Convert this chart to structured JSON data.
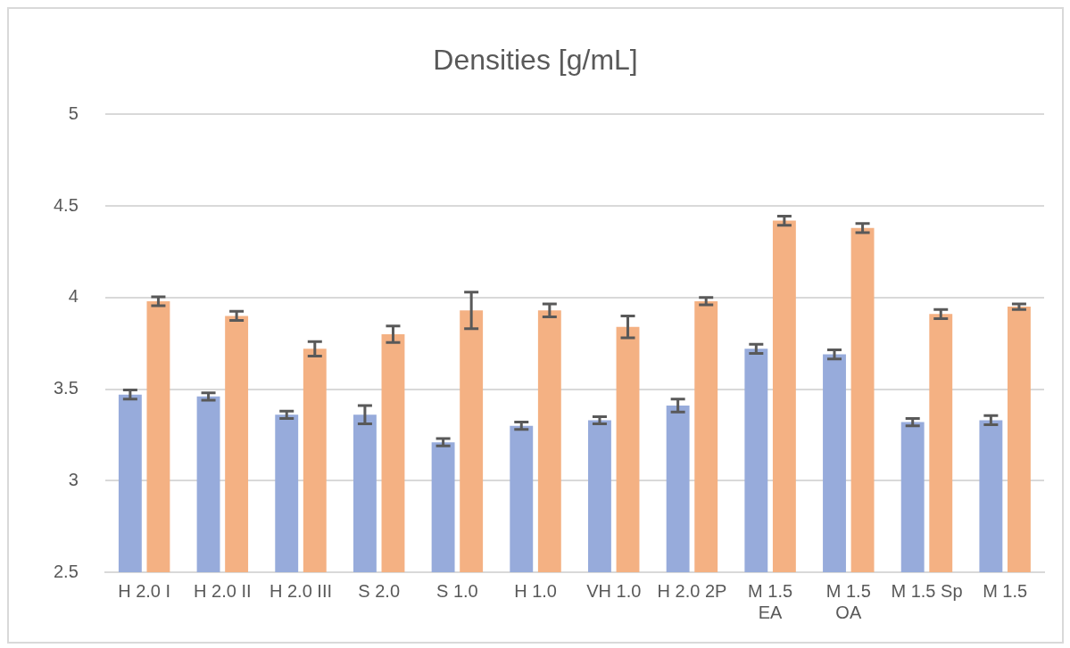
{
  "chart_data": {
    "type": "bar",
    "title": "Densities [g/mL]",
    "categories": [
      "H 2.0 I",
      "H 2.0 II",
      "H 2.0 III",
      "S 2.0",
      "S 1.0",
      "H 1.0",
      "VH 1.0",
      "H 2.0 2P",
      "M 1.5 EA",
      "M 1.5 OA",
      "M 1.5 Sp",
      "M 1.5"
    ],
    "series": [
      {
        "color": "#97abdb",
        "values": [
          3.47,
          3.46,
          3.36,
          3.36,
          3.21,
          3.3,
          3.33,
          3.41,
          3.72,
          3.69,
          3.32,
          3.33
        ],
        "errors": [
          0.025,
          0.02,
          0.02,
          0.05,
          0.02,
          0.02,
          0.02,
          0.035,
          0.025,
          0.025,
          0.02,
          0.025
        ]
      },
      {
        "color": "#f4b183",
        "values": [
          3.98,
          3.9,
          3.72,
          3.8,
          3.93,
          3.93,
          3.84,
          3.98,
          4.42,
          4.38,
          3.91,
          3.95
        ],
        "errors": [
          0.024,
          0.025,
          0.04,
          0.045,
          0.1,
          0.035,
          0.06,
          0.02,
          0.025,
          0.025,
          0.025,
          0.015
        ]
      }
    ],
    "ylim": [
      2.5,
      5
    ],
    "yticks": [
      2.5,
      3,
      3.5,
      4,
      4.5,
      5
    ],
    "grid": "y",
    "legend": false
  }
}
